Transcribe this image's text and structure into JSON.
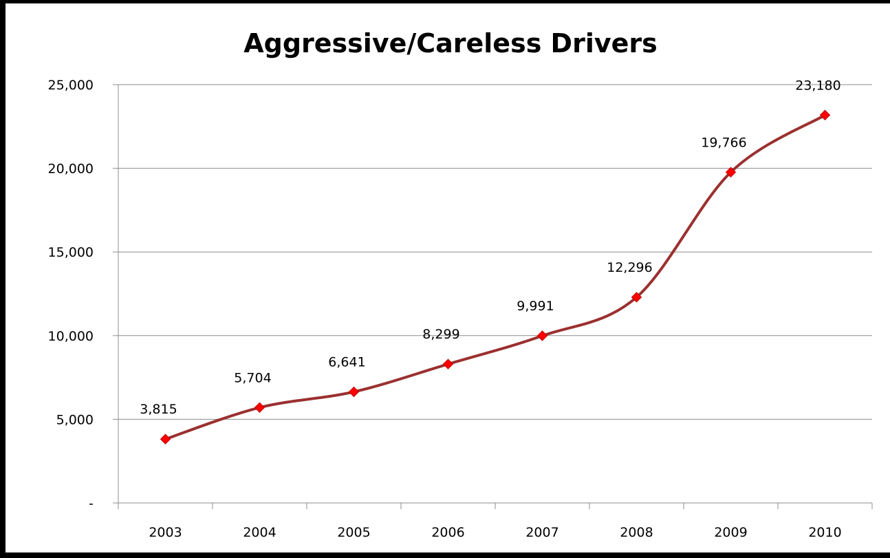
{
  "chart_data": {
    "type": "line",
    "title": "Aggressive/Careless Drivers",
    "xlabel": "",
    "ylabel": "",
    "categories": [
      "2003",
      "2004",
      "2005",
      "2006",
      "2007",
      "2008",
      "2009",
      "2010"
    ],
    "series": [
      {
        "values": [
          3815,
          5704,
          6641,
          8299,
          9991,
          12296,
          19766,
          23180
        ],
        "data_labels": [
          "3,815",
          "5,704",
          "6,641",
          "8,299",
          "9,991",
          "12,296",
          "19,766",
          "23,180"
        ],
        "line_color": "#9b3030",
        "marker_color": "#ff0000",
        "marker": "diamond",
        "smooth": true
      }
    ],
    "ylim": [
      0,
      25000
    ],
    "y_ticks": [
      0,
      5000,
      10000,
      15000,
      20000,
      25000
    ],
    "y_tick_labels": [
      "-",
      "5,000",
      "10,000",
      "15,000",
      "20,000",
      "25,000"
    ],
    "grid": "horizontal",
    "legend": "none"
  }
}
